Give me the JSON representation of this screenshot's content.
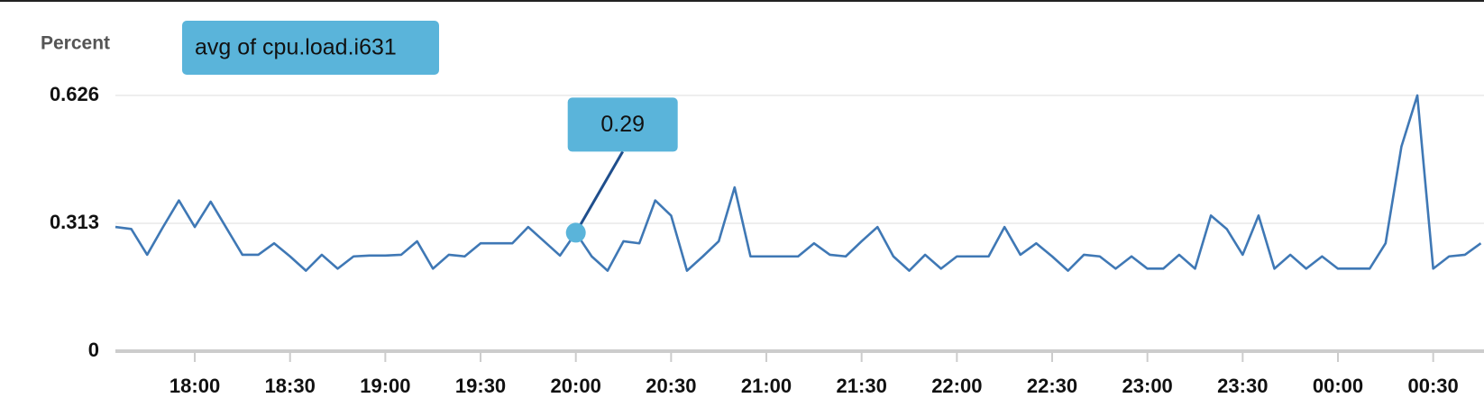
{
  "chart_data": {
    "type": "line",
    "y_label": "Percent",
    "x": [
      1055,
      1060,
      1065,
      1070,
      1075,
      1080,
      1085,
      1090,
      1095,
      1100,
      1105,
      1110,
      1115,
      1120,
      1125,
      1130,
      1135,
      1140,
      1145,
      1150,
      1155,
      1160,
      1165,
      1170,
      1175,
      1180,
      1185,
      1190,
      1195,
      1200,
      1205,
      1210,
      1215,
      1220,
      1225,
      1230,
      1235,
      1240,
      1245,
      1250,
      1255,
      1260,
      1265,
      1270,
      1275,
      1280,
      1285,
      1290,
      1295,
      1300,
      1305,
      1310,
      1315,
      1320,
      1325,
      1330,
      1335,
      1340,
      1345,
      1350,
      1355,
      1360,
      1365,
      1370,
      1375,
      1380,
      1385,
      1390,
      1395,
      1400,
      1405,
      1410,
      1415,
      1420,
      1425,
      1430,
      1435,
      1440,
      1445,
      1450,
      1455,
      1460,
      1465,
      1470,
      1475,
      1480,
      1485
    ],
    "series": [
      {
        "name": "avg of cpu.load.i631",
        "color": "#3f78b5",
        "values": [
          0.304,
          0.299,
          0.236,
          0.304,
          0.369,
          0.304,
          0.366,
          0.301,
          0.236,
          0.236,
          0.264,
          0.232,
          0.197,
          0.236,
          0.202,
          0.232,
          0.234,
          0.234,
          0.236,
          0.269,
          0.202,
          0.236,
          0.232,
          0.264,
          0.264,
          0.264,
          0.304,
          0.269,
          0.234,
          0.29,
          0.232,
          0.197,
          0.269,
          0.264,
          0.369,
          0.332,
          0.197,
          0.232,
          0.269,
          0.401,
          0.232,
          0.232,
          0.232,
          0.232,
          0.264,
          0.236,
          0.232,
          0.269,
          0.304,
          0.232,
          0.197,
          0.236,
          0.202,
          0.232,
          0.232,
          0.232,
          0.304,
          0.236,
          0.264,
          0.232,
          0.197,
          0.236,
          0.232,
          0.202,
          0.232,
          0.202,
          0.202,
          0.236,
          0.202,
          0.332,
          0.299,
          0.236,
          0.332,
          0.202,
          0.236,
          0.202,
          0.232,
          0.202,
          0.202,
          0.202,
          0.264,
          0.501,
          0.626,
          0.202,
          0.232,
          0.236,
          0.264
        ]
      }
    ],
    "xlim": [
      1055,
      1486
    ],
    "xticks": [
      {
        "value": 1080,
        "label": "18:00"
      },
      {
        "value": 1110,
        "label": "18:30"
      },
      {
        "value": 1140,
        "label": "19:00"
      },
      {
        "value": 1170,
        "label": "19:30"
      },
      {
        "value": 1200,
        "label": "20:00"
      },
      {
        "value": 1230,
        "label": "20:30"
      },
      {
        "value": 1260,
        "label": "21:00"
      },
      {
        "value": 1290,
        "label": "21:30"
      },
      {
        "value": 1320,
        "label": "22:00"
      },
      {
        "value": 1350,
        "label": "22:30"
      },
      {
        "value": 1380,
        "label": "23:00"
      },
      {
        "value": 1410,
        "label": "23:30"
      },
      {
        "value": 1440,
        "label": "00:00"
      },
      {
        "value": 1470,
        "label": "00:30"
      }
    ],
    "ylim": [
      0,
      0.626
    ],
    "yticks": [
      0,
      0.313,
      0.626
    ],
    "grid": true,
    "annotations": [
      {
        "text": "0.29",
        "x": 1200,
        "y": 0.29
      }
    ]
  }
}
